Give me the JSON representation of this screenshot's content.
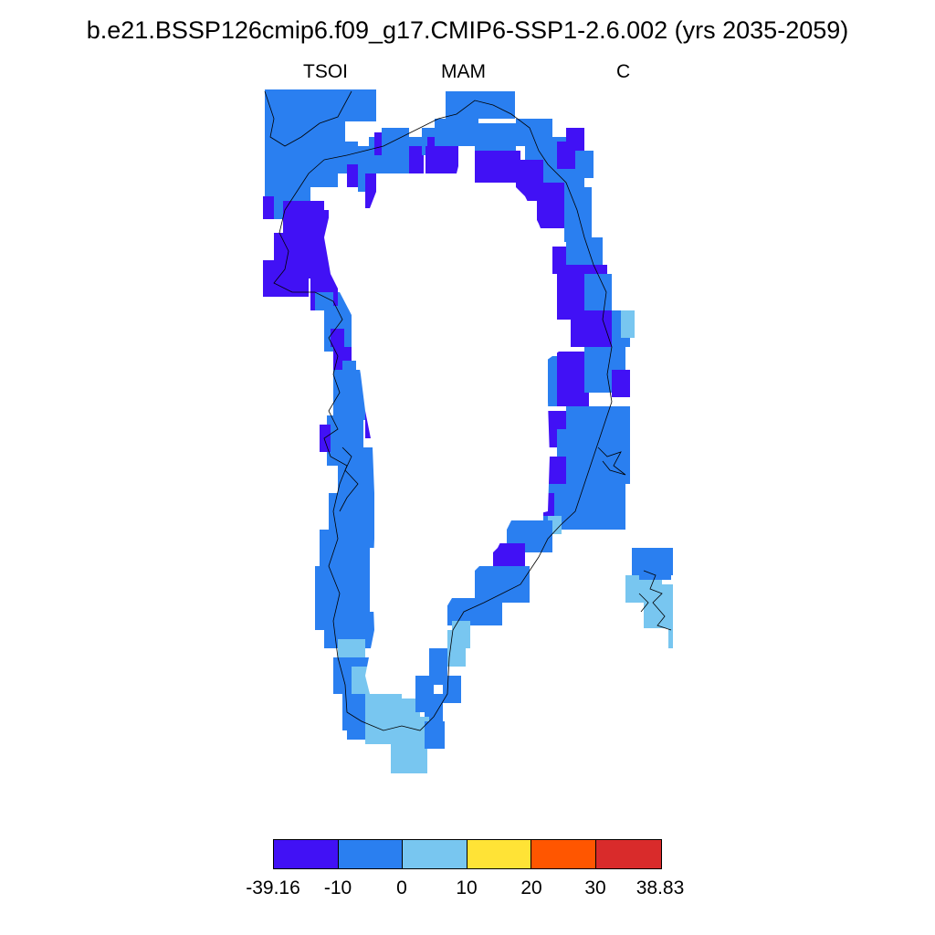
{
  "title": "b.e21.BSSP126cmip6.f09_g17.CMIP6-SSP1-2.6.002 (yrs 2035-2059)",
  "subtitle": {
    "left": "TSOI",
    "center": "MAM",
    "right": "C"
  },
  "colors": {
    "c1": "#4111F5",
    "c2": "#2A7FF0",
    "c3": "#78C6F0",
    "c4": "#FFE336",
    "c5": "#FF5600",
    "c6": "#D92B2B"
  },
  "colorbar": {
    "boxes": [
      "c1",
      "c2",
      "c3",
      "c4",
      "c5",
      "c6"
    ],
    "labels": [
      "-39.16",
      "-10",
      "0",
      "10",
      "20",
      "30",
      "38.83"
    ]
  }
}
